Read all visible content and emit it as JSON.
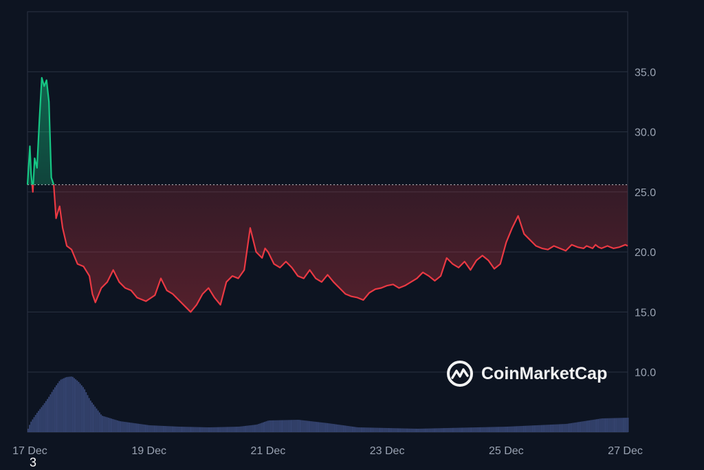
{
  "chart_data": {
    "type": "line",
    "title": "",
    "xlabel": "",
    "ylabel": "",
    "ylim": [
      5.0,
      40.0
    ],
    "y_ticks": [
      "35.0",
      "30.0",
      "25.0",
      "20.0",
      "15.0",
      "10.0"
    ],
    "y_tick_values": [
      35,
      30,
      25,
      20,
      15,
      10
    ],
    "x_ticks": [
      "17 Dec",
      "19 Dec",
      "21 Dec",
      "23 Dec",
      "25 Dec",
      "27 Dec"
    ],
    "x_tick_days": [
      17,
      19,
      21,
      23,
      25,
      27
    ],
    "xlim_days": [
      16.96,
      27.04
    ],
    "baseline": 25.6,
    "grid": true,
    "colors": {
      "up": "#16c784",
      "down": "#ea3943",
      "volume": "#3a4a7a",
      "grid": "#2a3242",
      "background": "#0d1421"
    },
    "price_series": {
      "x_day": [
        16.96,
        17.0,
        17.02,
        17.05,
        17.08,
        17.12,
        17.16,
        17.2,
        17.24,
        17.28,
        17.32,
        17.36,
        17.4,
        17.44,
        17.48,
        17.5,
        17.55,
        17.62,
        17.7,
        17.8,
        17.9,
        18.0,
        18.05,
        18.1,
        18.2,
        18.3,
        18.4,
        18.5,
        18.6,
        18.7,
        18.8,
        18.95,
        19.1,
        19.2,
        19.3,
        19.4,
        19.5,
        19.6,
        19.7,
        19.8,
        19.9,
        20.0,
        20.1,
        20.2,
        20.3,
        20.4,
        20.5,
        20.6,
        20.7,
        20.8,
        20.9,
        20.95,
        21.0,
        21.05,
        21.1,
        21.2,
        21.3,
        21.4,
        21.5,
        21.6,
        21.7,
        21.8,
        21.9,
        22.0,
        22.1,
        22.2,
        22.3,
        22.4,
        22.5,
        22.6,
        22.7,
        22.8,
        22.9,
        23.0,
        23.1,
        23.2,
        23.3,
        23.4,
        23.5,
        23.6,
        23.7,
        23.8,
        23.9,
        24.0,
        24.1,
        24.2,
        24.3,
        24.4,
        24.5,
        24.6,
        24.7,
        24.8,
        24.9,
        25.0,
        25.1,
        25.2,
        25.3,
        25.4,
        25.5,
        25.6,
        25.7,
        25.8,
        25.9,
        26.0,
        26.1,
        26.2,
        26.3,
        26.35,
        26.4,
        26.45,
        26.5,
        26.55,
        26.6,
        26.7,
        26.8,
        26.9,
        27.0,
        27.04
      ],
      "price": [
        25.6,
        28.8,
        26.5,
        25.0,
        27.8,
        27.0,
        31.0,
        34.5,
        33.8,
        34.3,
        32.5,
        26.2,
        25.6,
        22.8,
        23.5,
        23.8,
        22.0,
        20.5,
        20.2,
        19.0,
        18.8,
        18.0,
        16.5,
        15.8,
        17.0,
        17.5,
        18.5,
        17.5,
        17.0,
        16.8,
        16.2,
        15.9,
        16.4,
        17.8,
        16.8,
        16.5,
        16.0,
        15.5,
        15.0,
        15.6,
        16.5,
        17.0,
        16.2,
        15.6,
        17.5,
        18.0,
        17.8,
        18.5,
        22.0,
        20.0,
        19.5,
        20.3,
        20.0,
        19.5,
        19.0,
        18.7,
        19.2,
        18.7,
        18.0,
        17.8,
        18.5,
        17.8,
        17.5,
        18.1,
        17.5,
        17.0,
        16.5,
        16.3,
        16.2,
        16.0,
        16.6,
        16.9,
        17.0,
        17.2,
        17.3,
        17.0,
        17.2,
        17.5,
        17.8,
        18.3,
        18.0,
        17.6,
        18.0,
        19.5,
        19.0,
        18.7,
        19.2,
        18.5,
        19.3,
        19.7,
        19.3,
        18.6,
        19.0,
        20.8,
        22.0,
        23.0,
        21.5,
        21.0,
        20.5,
        20.3,
        20.2,
        20.5,
        20.3,
        20.1,
        20.6,
        20.4,
        20.3,
        20.5,
        20.4,
        20.3,
        20.6,
        20.4,
        20.3,
        20.5,
        20.3,
        20.4,
        20.6,
        20.5
      ]
    },
    "volume_series": {
      "x_day": [
        16.96,
        17.0,
        17.1,
        17.2,
        17.3,
        17.4,
        17.5,
        17.6,
        17.7,
        17.8,
        17.9,
        18.0,
        18.2,
        18.5,
        19.0,
        19.5,
        20.0,
        20.5,
        20.8,
        21.0,
        21.5,
        22.0,
        22.5,
        23.0,
        23.5,
        24.0,
        24.5,
        25.0,
        25.5,
        26.0,
        26.3,
        26.6,
        27.04
      ],
      "volume_pct": [
        0.03,
        0.12,
        0.25,
        0.36,
        0.48,
        0.62,
        0.74,
        0.78,
        0.79,
        0.72,
        0.62,
        0.45,
        0.22,
        0.14,
        0.08,
        0.06,
        0.05,
        0.06,
        0.09,
        0.15,
        0.16,
        0.11,
        0.05,
        0.04,
        0.03,
        0.04,
        0.05,
        0.06,
        0.08,
        0.1,
        0.14,
        0.18,
        0.19
      ]
    }
  },
  "watermark": {
    "text": "CoinMarketCap"
  },
  "corner_label": "3"
}
